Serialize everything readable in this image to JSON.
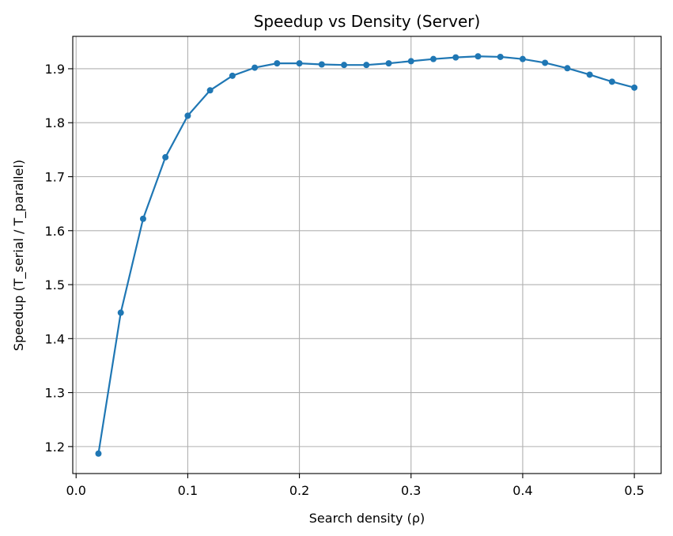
{
  "chart_data": {
    "type": "line",
    "title": "Speedup vs Density (Server)",
    "xlabel": "Search density (ρ)",
    "ylabel": "Speedup (T_serial / T_parallel)",
    "xlim": [
      -0.003,
      0.524
    ],
    "ylim": [
      1.15,
      1.96
    ],
    "x_ticks": [
      0.0,
      0.1,
      0.2,
      0.3,
      0.4,
      0.5
    ],
    "x_tick_labels": [
      "0.0",
      "0.1",
      "0.2",
      "0.3",
      "0.4",
      "0.5"
    ],
    "y_ticks": [
      1.2,
      1.3,
      1.4,
      1.5,
      1.6,
      1.7,
      1.8,
      1.9
    ],
    "y_tick_labels": [
      "1.2",
      "1.3",
      "1.4",
      "1.5",
      "1.6",
      "1.7",
      "1.8",
      "1.9"
    ],
    "grid": true,
    "color": "#1f77b4",
    "marker": "circle",
    "x": [
      0.02,
      0.04,
      0.06,
      0.08,
      0.1,
      0.12,
      0.14,
      0.16,
      0.18,
      0.2,
      0.22,
      0.24,
      0.26,
      0.28,
      0.3,
      0.32,
      0.34,
      0.36,
      0.38,
      0.4,
      0.42,
      0.44,
      0.46,
      0.48,
      0.5
    ],
    "y": [
      1.187,
      1.448,
      1.622,
      1.736,
      1.813,
      1.86,
      1.887,
      1.902,
      1.91,
      1.91,
      1.908,
      1.907,
      1.907,
      1.91,
      1.914,
      1.918,
      1.921,
      1.923,
      1.922,
      1.918,
      1.911,
      1.901,
      1.889,
      1.876,
      1.865
    ]
  }
}
